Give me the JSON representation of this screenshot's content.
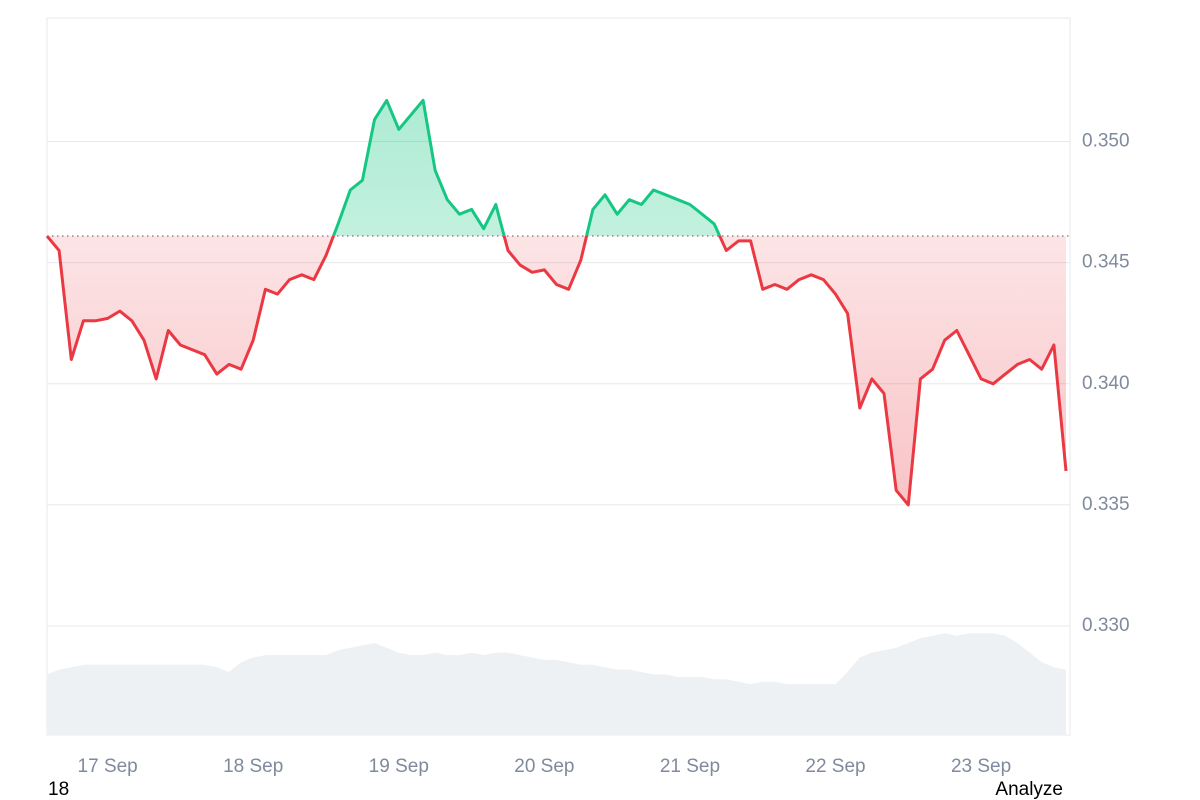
{
  "chart_data": {
    "type": "line",
    "categories": [
      null,
      null,
      null,
      null,
      null,
      "17 Sep",
      null,
      null,
      null,
      null,
      null,
      null,
      null,
      null,
      null,
      null,
      null,
      "18 Sep",
      null,
      null,
      null,
      null,
      null,
      null,
      null,
      null,
      null,
      null,
      null,
      "19 Sep",
      null,
      null,
      null,
      null,
      null,
      null,
      null,
      null,
      null,
      null,
      null,
      "20 Sep",
      null,
      null,
      null,
      null,
      null,
      null,
      null,
      null,
      null,
      null,
      null,
      "21 Sep",
      null,
      null,
      null,
      null,
      null,
      null,
      null,
      null,
      null,
      null,
      null,
      "22 Sep",
      null,
      null,
      null,
      null,
      null,
      null,
      null,
      null,
      null,
      null,
      null,
      "23 Sep",
      null,
      null,
      null,
      null,
      null,
      null,
      null
    ],
    "series": [
      {
        "name": "Price",
        "axis": "y",
        "color_up": "#16c784",
        "color_down": "#ea3943",
        "values": [
          0.3461,
          0.3455,
          0.341,
          0.3426,
          0.3426,
          0.3427,
          0.343,
          0.3426,
          0.3418,
          0.3402,
          0.3422,
          0.3416,
          0.3414,
          0.3412,
          0.3404,
          0.3408,
          0.3406,
          0.3418,
          0.3439,
          0.3437,
          0.3443,
          0.3445,
          0.3443,
          0.3453,
          0.3466,
          0.348,
          0.3484,
          0.3509,
          0.3517,
          0.3505,
          0.3511,
          0.3517,
          0.3488,
          0.3476,
          0.347,
          0.3472,
          0.3464,
          0.3474,
          0.3455,
          0.3449,
          0.3446,
          0.3447,
          0.3441,
          0.3439,
          0.3451,
          0.3472,
          0.3478,
          0.347,
          0.3476,
          0.3474,
          0.348,
          0.3478,
          0.3476,
          0.3474,
          0.347,
          0.3466,
          0.3455,
          0.3459,
          0.3459,
          0.3439,
          0.3441,
          0.3439,
          0.3443,
          0.3445,
          0.3443,
          0.3437,
          0.3429,
          0.339,
          0.3402,
          0.3396,
          0.3356,
          0.335,
          0.3402,
          0.3406,
          0.3418,
          0.3422,
          0.3412,
          0.3402,
          0.34,
          0.3404,
          0.3408,
          0.341,
          0.3406,
          0.3416,
          0.3364
        ]
      },
      {
        "name": "Volume",
        "axis": "y",
        "color": "#eef1f4",
        "values": [
          0.328,
          0.3282,
          0.3283,
          0.3284,
          0.3284,
          0.3284,
          0.3284,
          0.3284,
          0.3284,
          0.3284,
          0.3284,
          0.3284,
          0.3284,
          0.3284,
          0.3283,
          0.3281,
          0.3285,
          0.3287,
          0.3288,
          0.3288,
          0.3288,
          0.3288,
          0.3288,
          0.3288,
          0.329,
          0.3291,
          0.3292,
          0.3293,
          0.3291,
          0.3289,
          0.3288,
          0.3288,
          0.3289,
          0.3288,
          0.3288,
          0.3289,
          0.3288,
          0.3289,
          0.3289,
          0.3288,
          0.3287,
          0.3286,
          0.3286,
          0.3285,
          0.3284,
          0.3284,
          0.3283,
          0.3282,
          0.3282,
          0.3281,
          0.328,
          0.328,
          0.3279,
          0.3279,
          0.3279,
          0.3278,
          0.3278,
          0.3277,
          0.3276,
          0.3277,
          0.3277,
          0.3276,
          0.3276,
          0.3276,
          0.3276,
          0.3276,
          0.3281,
          0.3287,
          0.3289,
          0.329,
          0.3291,
          0.3293,
          0.3295,
          0.3296,
          0.3297,
          0.3296,
          0.3297,
          0.3297,
          0.3297,
          0.3296,
          0.3293,
          0.3289,
          0.3285,
          0.3283,
          0.3282
        ]
      }
    ],
    "reference": 0.3461,
    "ylim": [
      0.3255,
      0.3551
    ],
    "yticks": [
      {
        "value": 0.33,
        "label": "0.330"
      },
      {
        "value": 0.335,
        "label": "0.335"
      },
      {
        "value": 0.34,
        "label": "0.340"
      },
      {
        "value": 0.345,
        "label": "0.345"
      },
      {
        "value": 0.35,
        "label": "0.350"
      }
    ],
    "grid": true
  },
  "footer": {
    "left": "18",
    "right": "Analyze"
  }
}
